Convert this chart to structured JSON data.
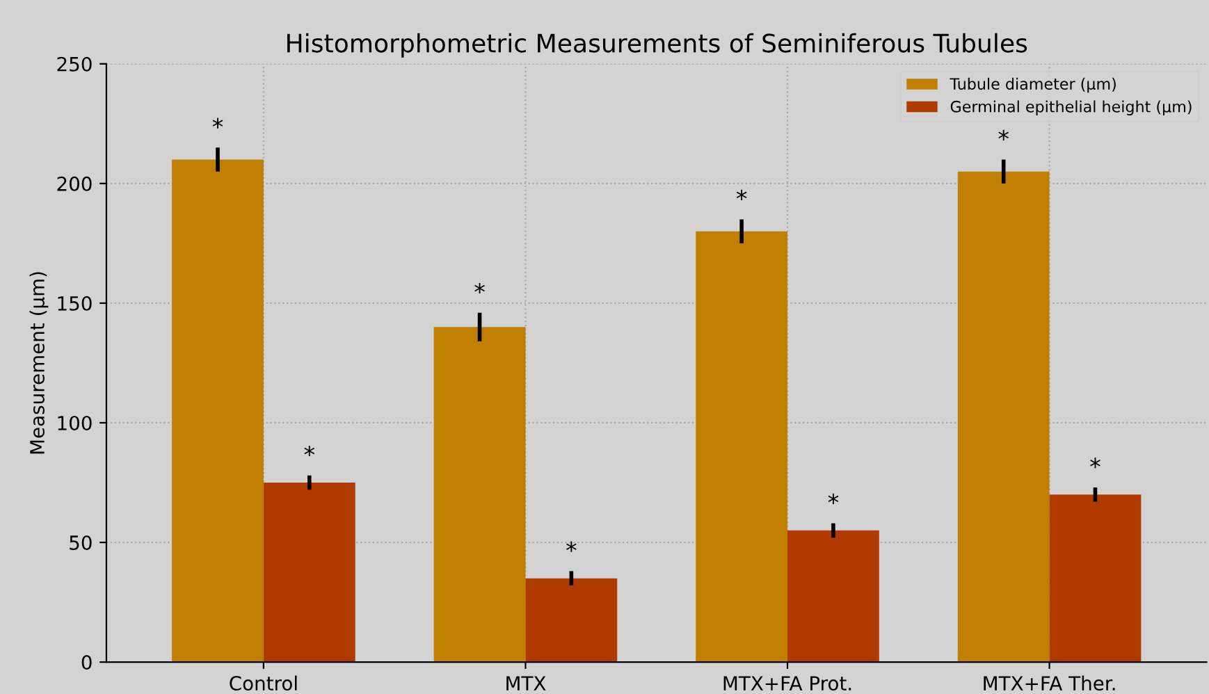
{
  "chart_data": {
    "type": "bar",
    "title": "Histomorphometric Measurements of Seminiferous Tubules",
    "ylabel": "Measurement (µm)",
    "categories": [
      "Control",
      "MTX",
      "MTX+FA Prot.",
      "MTX+FA Ther."
    ],
    "series": [
      {
        "name": "Tubule diameter (µm)",
        "color": "#c07f00",
        "values": [
          210,
          140,
          180,
          205
        ],
        "errors": [
          5,
          6,
          5,
          5
        ],
        "value_labels": [
          "*",
          "*",
          "*",
          "*"
        ]
      },
      {
        "name": "Germinal epithelial height (µm)",
        "color": "#b03a00",
        "values": [
          75,
          35,
          55,
          70
        ],
        "errors": [
          3,
          3,
          3,
          3
        ],
        "value_labels": [
          "*",
          "*",
          "*",
          "*"
        ]
      }
    ],
    "ylim": [
      0,
      250
    ],
    "yticks": [
      0,
      50,
      100,
      150,
      200,
      250
    ],
    "grid": true,
    "legend": "top right"
  }
}
